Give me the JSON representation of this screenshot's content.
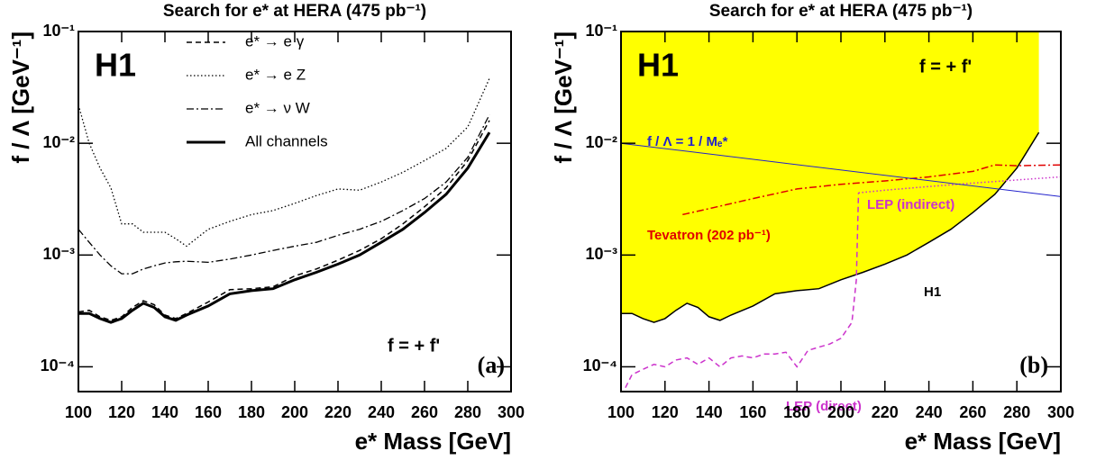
{
  "chart_data": [
    {
      "type": "line",
      "title": "Search for e* at HERA (475 pb⁻¹)",
      "xlabel": "e* Mass [GeV]",
      "ylabel": "f / Λ [GeV⁻¹]",
      "log_y": true,
      "grid": false,
      "legend": true,
      "xlim": [
        100,
        300
      ],
      "ylim": [
        6e-05,
        0.1
      ],
      "xticks": [
        100,
        120,
        140,
        160,
        180,
        200,
        220,
        240,
        260,
        280,
        300
      ],
      "yticks": [
        {
          "value": 0.1,
          "label": "10⁻¹"
        },
        {
          "value": 0.01,
          "label": "10⁻²"
        },
        {
          "value": 0.001,
          "label": "10⁻³"
        },
        {
          "value": 0.0001,
          "label": "10⁻⁴"
        }
      ],
      "annotations": [
        "H1",
        "f = + f'",
        "(a)"
      ],
      "x": [
        100,
        105,
        110,
        115,
        120,
        125,
        130,
        135,
        140,
        145,
        150,
        160,
        170,
        180,
        190,
        200,
        210,
        220,
        230,
        240,
        250,
        260,
        270,
        280,
        290
      ],
      "series": [
        {
          "name": "e* → e γ",
          "color": "#000000",
          "dash": "dashed",
          "width": 1.5,
          "values": [
            0.00031,
            0.00032,
            0.00028,
            0.00026,
            0.00028,
            0.00034,
            0.00039,
            0.00036,
            0.00029,
            0.00027,
            0.0003,
            0.00038,
            0.00049,
            0.0005,
            0.00052,
            0.00065,
            0.00075,
            0.0009,
            0.0011,
            0.0014,
            0.0019,
            0.0027,
            0.004,
            0.007,
            0.016
          ]
        },
        {
          "name": "e* → e Z",
          "color": "#000000",
          "dash": "dotted",
          "width": 1.3,
          "values": [
            0.022,
            0.01,
            0.006,
            0.004,
            0.0019,
            0.0019,
            0.0016,
            0.0016,
            0.0016,
            0.0014,
            0.0012,
            0.0017,
            0.002,
            0.0023,
            0.0025,
            0.0029,
            0.0034,
            0.0039,
            0.0038,
            0.0045,
            0.0055,
            0.007,
            0.009,
            0.014,
            0.038
          ]
        },
        {
          "name": "e* → ν W",
          "color": "#000000",
          "dash": "dashdot",
          "width": 1.3,
          "values": [
            0.0017,
            0.0013,
            0.001,
            0.0008,
            0.00068,
            0.00068,
            0.00075,
            0.0008,
            0.00085,
            0.00087,
            0.00088,
            0.00086,
            0.00092,
            0.001,
            0.0011,
            0.0012,
            0.0013,
            0.0015,
            0.0017,
            0.002,
            0.0025,
            0.0032,
            0.0045,
            0.0075,
            0.018
          ]
        },
        {
          "name": "All channels",
          "color": "#000000",
          "dash": "solid",
          "width": 3,
          "values": [
            0.0003,
            0.0003,
            0.00027,
            0.00025,
            0.00027,
            0.00032,
            0.00037,
            0.00034,
            0.00028,
            0.00026,
            0.00029,
            0.00035,
            0.00045,
            0.00048,
            0.0005,
            0.0006,
            0.0007,
            0.00083,
            0.001,
            0.0013,
            0.0017,
            0.0024,
            0.0035,
            0.006,
            0.0125
          ]
        }
      ]
    },
    {
      "type": "line",
      "title": "Search for e* at HERA (475 pb⁻¹)",
      "xlabel": "e* Mass [GeV]",
      "ylabel": "f / Λ [GeV⁻¹]",
      "log_y": true,
      "grid": false,
      "legend": false,
      "xlim": [
        100,
        300
      ],
      "ylim": [
        6e-05,
        0.1
      ],
      "xticks": [
        100,
        120,
        140,
        160,
        180,
        200,
        220,
        240,
        260,
        280,
        300
      ],
      "yticks": [
        {
          "value": 0.1,
          "label": "10⁻¹"
        },
        {
          "value": 0.01,
          "label": "10⁻²"
        },
        {
          "value": 0.001,
          "label": "10⁻³"
        },
        {
          "value": 0.0001,
          "label": "10⁻⁴"
        }
      ],
      "annotations": [
        "H1",
        "f = + f'",
        "(b)"
      ],
      "series": [
        {
          "name": "H1",
          "color": "#000000",
          "dash": "solid",
          "width": 1.5,
          "fill": "#ffff00",
          "x": [
            100,
            105,
            110,
            115,
            120,
            125,
            130,
            135,
            140,
            145,
            150,
            160,
            170,
            180,
            190,
            200,
            210,
            220,
            230,
            240,
            250,
            260,
            270,
            280,
            290
          ],
          "values": [
            0.0003,
            0.0003,
            0.00027,
            0.00025,
            0.00027,
            0.00032,
            0.00037,
            0.00034,
            0.00028,
            0.00026,
            0.00029,
            0.00035,
            0.00045,
            0.00048,
            0.0005,
            0.0006,
            0.0007,
            0.00083,
            0.001,
            0.0013,
            0.0017,
            0.0024,
            0.0035,
            0.006,
            0.0125
          ]
        },
        {
          "name": "LEP (direct)",
          "color": "#cc33cc",
          "dash": "dashed",
          "width": 1.5,
          "x": [
            102,
            105,
            110,
            115,
            120,
            125,
            130,
            135,
            140,
            145,
            150,
            155,
            160,
            165,
            170,
            175,
            180,
            185,
            190,
            195,
            200,
            205,
            207,
            208
          ],
          "values": [
            6.5e-05,
            8.5e-05,
            9.5e-05,
            0.000105,
            0.0001,
            0.000115,
            0.00012,
            0.000105,
            0.00012,
            0.0001,
            0.00012,
            0.000125,
            0.00012,
            0.00013,
            0.00013,
            0.000135,
            0.0001,
            0.00014,
            0.00015,
            0.00016,
            0.00018,
            0.00025,
            0.0006,
            0.0036
          ]
        },
        {
          "name": "LEP (indirect)",
          "color": "#cc33cc",
          "dash": "dotted",
          "width": 1.5,
          "x": [
            208,
            220,
            240,
            260,
            280,
            300
          ],
          "values": [
            0.0036,
            0.0038,
            0.0041,
            0.0044,
            0.0047,
            0.005
          ]
        },
        {
          "name": "Tevatron (202 pb⁻¹)",
          "color": "#e00000",
          "dash": "dashdot",
          "width": 1.5,
          "x": [
            128,
            140,
            160,
            180,
            200,
            220,
            240,
            260,
            270,
            280,
            300
          ],
          "values": [
            0.0023,
            0.0026,
            0.0032,
            0.0039,
            0.0043,
            0.0046,
            0.005,
            0.0056,
            0.0064,
            0.0063,
            0.0064
          ]
        },
        {
          "name": "f / Λ  = 1 / Mₑ*",
          "color": "#2222cc",
          "dash": "solid",
          "width": 1,
          "x": [
            100,
            300
          ],
          "values": [
            0.01,
            0.00333
          ]
        }
      ]
    }
  ]
}
